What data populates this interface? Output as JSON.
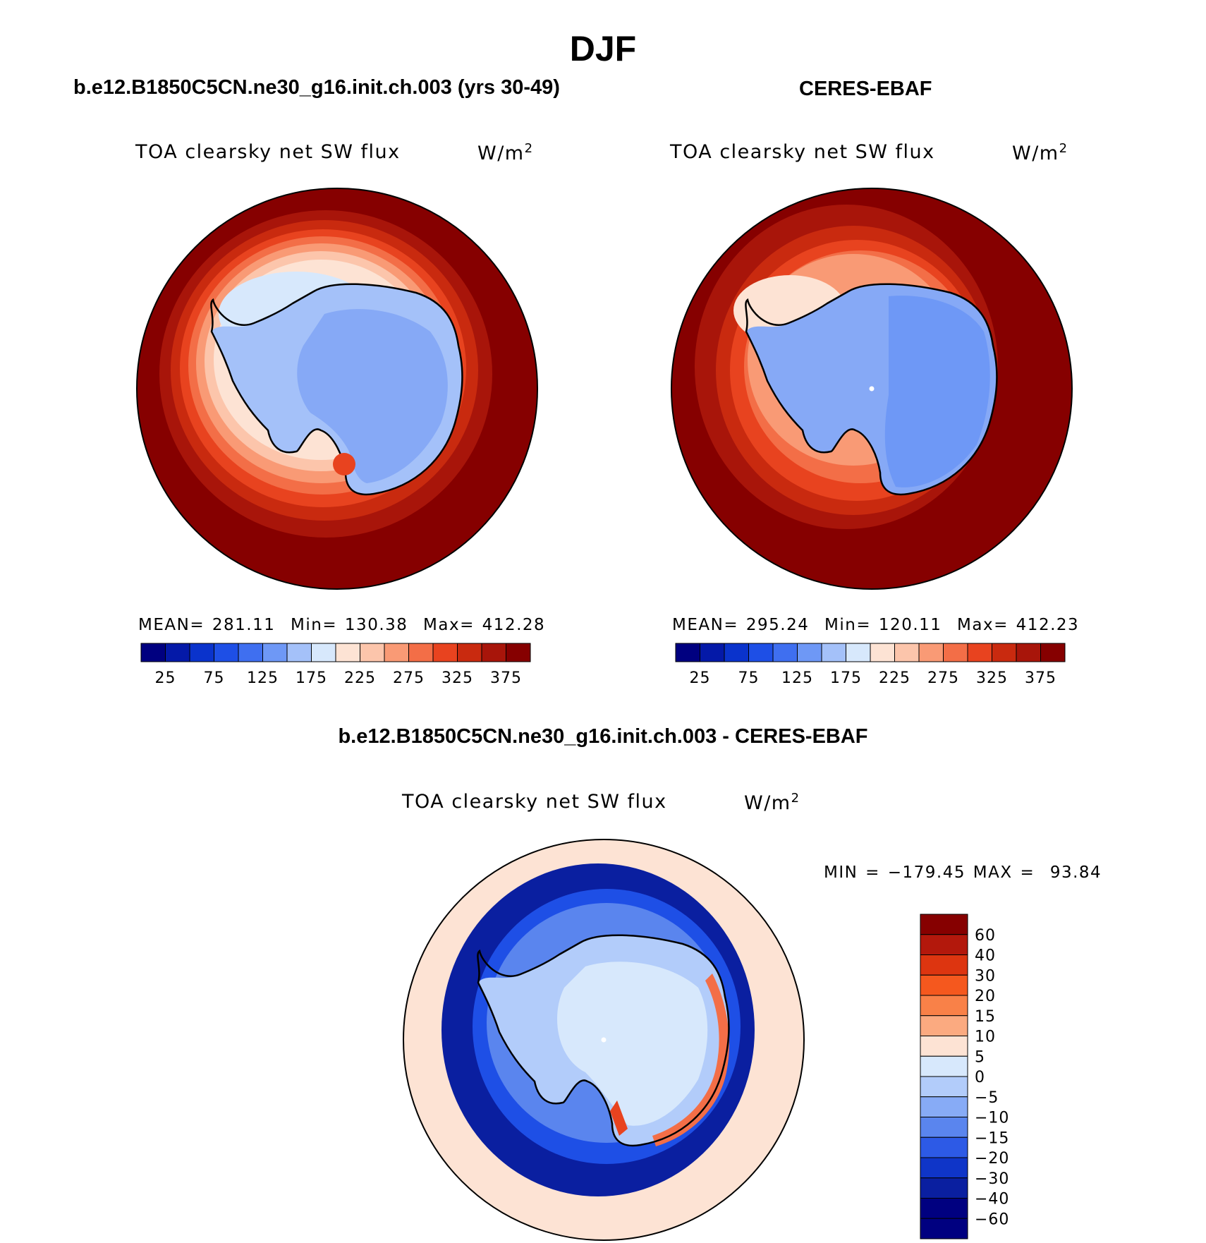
{
  "chart_data": {
    "type": "heatmap",
    "title": "DJF",
    "panels": [
      {
        "id": "model",
        "title": "b.e12.B1850C5CN.ne30_g16.init.ch.003 (yrs 30-49)",
        "variable": "TOA clearsky net SW flux",
        "units": "W/m",
        "units_exp": "2",
        "stats": {
          "mean_label": "MEAN=",
          "mean": "281.11",
          "min_label": "Min=",
          "min": "130.38",
          "max_label": "Max=",
          "max": "412.28"
        },
        "levels": [
          "25",
          "75",
          "125",
          "175",
          "225",
          "275",
          "325",
          "375"
        ]
      },
      {
        "id": "obs",
        "title": "CERES-EBAF",
        "variable": "TOA clearsky net SW flux",
        "units": "W/m",
        "units_exp": "2",
        "stats": {
          "mean_label": "MEAN=",
          "mean": "295.24",
          "min_label": "Min=",
          "min": "120.11",
          "max_label": "Max=",
          "max": "412.23"
        },
        "levels": [
          "25",
          "75",
          "125",
          "175",
          "225",
          "275",
          "325",
          "375"
        ]
      },
      {
        "id": "diff",
        "title": "b.e12.B1850C5CN.ne30_g16.init.ch.003 - CERES-EBAF",
        "variable": "TOA clearsky net SW flux",
        "units": "W/m",
        "units_exp": "2",
        "stats": {
          "min_label": "MIN =",
          "min": "−179.45",
          "max_label": "MAX =",
          "max": "93.84"
        },
        "levels": [
          "60",
          "40",
          "30",
          "20",
          "15",
          "10",
          "5",
          "0",
          "−5",
          "−10",
          "−15",
          "−20",
          "−30",
          "−40",
          "−60"
        ]
      }
    ],
    "abs_palette": [
      "#000080",
      "#0419a8",
      "#0a33cc",
      "#1e4fe6",
      "#3f6ff0",
      "#6e98f6",
      "#a4c1f9",
      "#d7e8fc",
      "#fde3d4",
      "#fcc5ab",
      "#f99a75",
      "#f36e47",
      "#e8431f",
      "#c92a0f",
      "#a8150a",
      "#860000"
    ],
    "diff_palette": [
      "#860000",
      "#b3180c",
      "#dd3510",
      "#f5581e",
      "#f98148",
      "#fbaa80",
      "#fde3d4",
      "#d7e8fc",
      "#b2ccfa",
      "#87abf6",
      "#5a85ee",
      "#2d5ae6",
      "#0f35c8",
      "#0a1fa0",
      "#000080"
    ]
  }
}
